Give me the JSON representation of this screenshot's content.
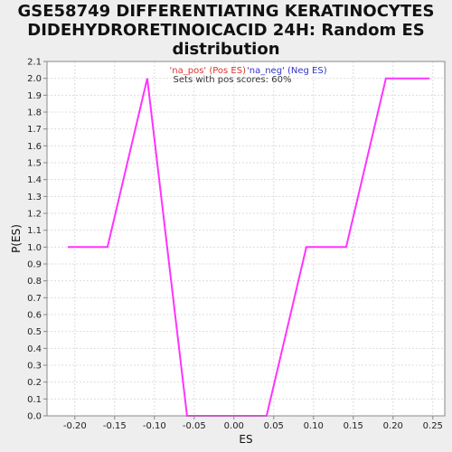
{
  "chart_data": {
    "type": "line",
    "title_lines": [
      "GSE58749 DIFFERENTIATING KERATINOCYTES",
      "DIDEHYDRORETINOICACID 24H: Random ES",
      "distribution"
    ],
    "xlabel": "ES",
    "ylabel": "P(ES)",
    "xlim": [
      -0.235,
      0.265
    ],
    "ylim": [
      0,
      2.1
    ],
    "x_ticks": [
      -0.2,
      -0.15,
      -0.1,
      -0.05,
      0.0,
      0.05,
      0.1,
      0.15,
      0.2,
      0.25
    ],
    "x_tick_labels": [
      "-0.20",
      "-0.15",
      "-0.10",
      "-0.05",
      "0.00",
      "0.05",
      "0.10",
      "0.15",
      "0.20",
      "0.25"
    ],
    "y_ticks": [
      0.0,
      0.1,
      0.2,
      0.3,
      0.4,
      0.5,
      0.6,
      0.7,
      0.8,
      0.9,
      1.0,
      1.1,
      1.2,
      1.3,
      1.4,
      1.5,
      1.6,
      1.7,
      1.8,
      1.9,
      2.0,
      2.1
    ],
    "y_tick_labels": [
      "0.0",
      "0.1",
      "0.2",
      "0.3",
      "0.4",
      "0.5",
      "0.6",
      "0.7",
      "0.8",
      "0.9",
      "1.0",
      "1.1",
      "1.2",
      "1.3",
      "1.4",
      "1.5",
      "1.6",
      "1.7",
      "1.8",
      "1.9",
      "2.0",
      "2.1"
    ],
    "grid": true,
    "legend": {
      "placement": "top-center",
      "pos_label": "'na_pos' (Pos ES)",
      "neg_label": "'na_neg' (Neg ES)",
      "note": "Sets with pos scores: 60%"
    },
    "series": [
      {
        "color": "#ff33ff",
        "x": [
          -0.209,
          -0.159,
          -0.109,
          -0.059,
          -0.009,
          0.041,
          0.091,
          0.141,
          0.191,
          0.246
        ],
        "y": [
          1.0,
          1.0,
          2.0,
          0.0,
          0.0,
          0.0,
          1.0,
          1.0,
          2.0,
          2.0
        ]
      }
    ],
    "colors": {
      "pos": "#dd3333",
      "neg": "#3333cc",
      "note": "#333333",
      "line": "#ff33ff",
      "grid": "#dddddd"
    }
  }
}
